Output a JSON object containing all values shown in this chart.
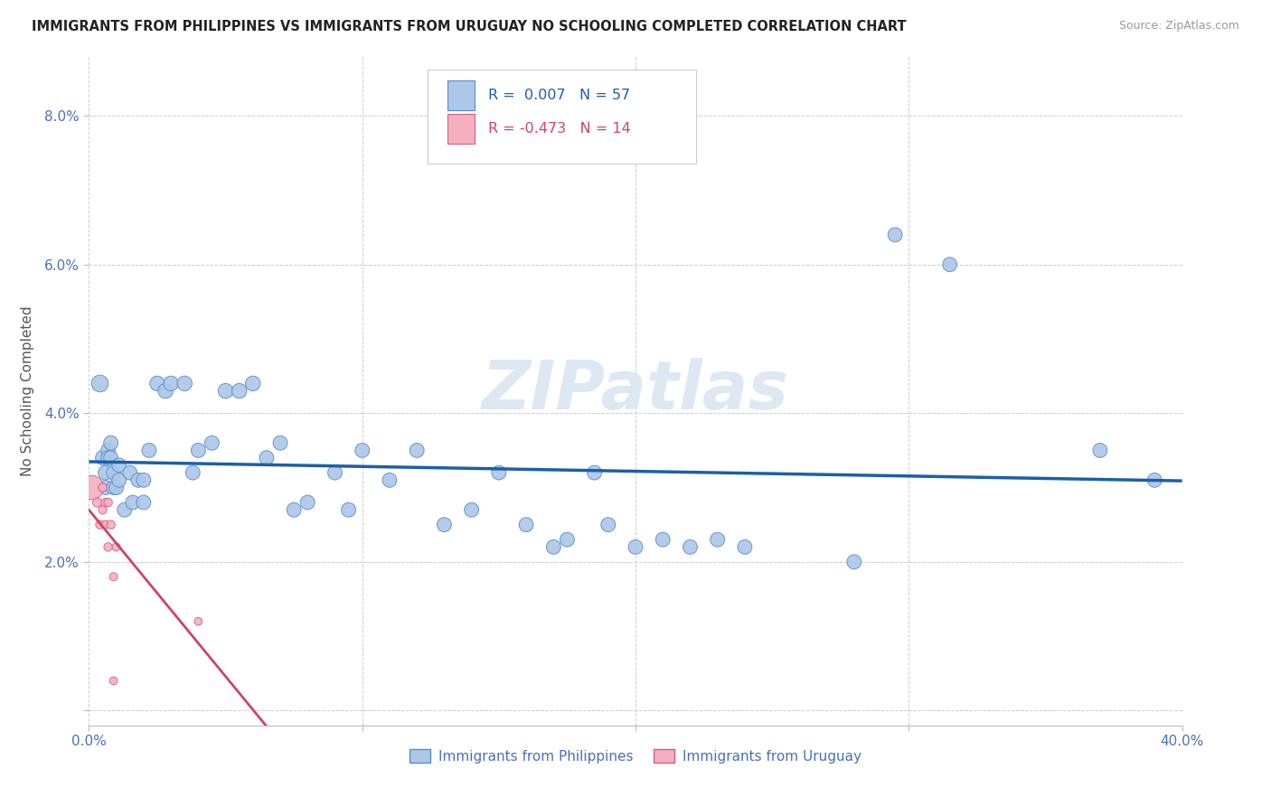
{
  "title": "IMMIGRANTS FROM PHILIPPINES VS IMMIGRANTS FROM URUGUAY NO SCHOOLING COMPLETED CORRELATION CHART",
  "source": "Source: ZipAtlas.com",
  "ylabel": "No Schooling Completed",
  "xlim": [
    0.0,
    0.4
  ],
  "ylim": [
    -0.002,
    0.088
  ],
  "yticks": [
    0.0,
    0.02,
    0.04,
    0.06,
    0.08
  ],
  "ytick_labels": [
    "",
    "2.0%",
    "4.0%",
    "6.0%",
    "8.0%"
  ],
  "xticks": [
    0.0,
    0.1,
    0.2,
    0.3,
    0.4
  ],
  "xtick_labels": [
    "0.0%",
    "",
    "",
    "",
    "40.0%"
  ],
  "philippines_R": 0.007,
  "philippines_N": 57,
  "uruguay_R": -0.473,
  "uruguay_N": 14,
  "philippines_color": "#aec6e8",
  "philippines_edge_color": "#5090cc",
  "philippines_line_color": "#1a5faa",
  "uruguay_color": "#f5afc0",
  "uruguay_edge_color": "#d06080",
  "uruguay_line_color": "#cc4466",
  "philippines_data": [
    [
      0.004,
      0.044,
      180
    ],
    [
      0.005,
      0.034,
      130
    ],
    [
      0.006,
      0.03,
      130
    ],
    [
      0.006,
      0.032,
      130
    ],
    [
      0.007,
      0.035,
      130
    ],
    [
      0.007,
      0.034,
      130
    ],
    [
      0.008,
      0.034,
      130
    ],
    [
      0.008,
      0.036,
      130
    ],
    [
      0.009,
      0.03,
      130
    ],
    [
      0.009,
      0.032,
      130
    ],
    [
      0.01,
      0.03,
      130
    ],
    [
      0.011,
      0.033,
      130
    ],
    [
      0.011,
      0.031,
      130
    ],
    [
      0.013,
      0.027,
      130
    ],
    [
      0.015,
      0.032,
      130
    ],
    [
      0.016,
      0.028,
      130
    ],
    [
      0.018,
      0.031,
      130
    ],
    [
      0.02,
      0.031,
      130
    ],
    [
      0.02,
      0.028,
      130
    ],
    [
      0.022,
      0.035,
      130
    ],
    [
      0.025,
      0.044,
      140
    ],
    [
      0.028,
      0.043,
      140
    ],
    [
      0.03,
      0.044,
      140
    ],
    [
      0.035,
      0.044,
      140
    ],
    [
      0.038,
      0.032,
      130
    ],
    [
      0.04,
      0.035,
      130
    ],
    [
      0.045,
      0.036,
      130
    ],
    [
      0.05,
      0.043,
      140
    ],
    [
      0.055,
      0.043,
      140
    ],
    [
      0.06,
      0.044,
      140
    ],
    [
      0.065,
      0.034,
      130
    ],
    [
      0.07,
      0.036,
      130
    ],
    [
      0.075,
      0.027,
      130
    ],
    [
      0.08,
      0.028,
      130
    ],
    [
      0.09,
      0.032,
      130
    ],
    [
      0.095,
      0.027,
      130
    ],
    [
      0.1,
      0.035,
      130
    ],
    [
      0.11,
      0.031,
      130
    ],
    [
      0.12,
      0.035,
      130
    ],
    [
      0.13,
      0.025,
      130
    ],
    [
      0.14,
      0.027,
      130
    ],
    [
      0.15,
      0.032,
      130
    ],
    [
      0.16,
      0.025,
      130
    ],
    [
      0.17,
      0.022,
      130
    ],
    [
      0.175,
      0.023,
      130
    ],
    [
      0.185,
      0.032,
      130
    ],
    [
      0.19,
      0.025,
      130
    ],
    [
      0.2,
      0.022,
      130
    ],
    [
      0.21,
      0.023,
      130
    ],
    [
      0.22,
      0.022,
      130
    ],
    [
      0.23,
      0.023,
      130
    ],
    [
      0.24,
      0.022,
      130
    ],
    [
      0.28,
      0.02,
      130
    ],
    [
      0.295,
      0.064,
      130
    ],
    [
      0.315,
      0.06,
      130
    ],
    [
      0.37,
      0.035,
      130
    ],
    [
      0.39,
      0.031,
      130
    ]
  ],
  "uruguay_data": [
    [
      0.001,
      0.03,
      2800
    ],
    [
      0.003,
      0.028,
      400
    ],
    [
      0.004,
      0.025,
      350
    ],
    [
      0.005,
      0.03,
      350
    ],
    [
      0.005,
      0.027,
      350
    ],
    [
      0.006,
      0.025,
      350
    ],
    [
      0.006,
      0.028,
      350
    ],
    [
      0.007,
      0.028,
      350
    ],
    [
      0.007,
      0.022,
      350
    ],
    [
      0.008,
      0.025,
      350
    ],
    [
      0.009,
      0.018,
      320
    ],
    [
      0.01,
      0.022,
      320
    ],
    [
      0.04,
      0.012,
      300
    ],
    [
      0.009,
      0.004,
      300
    ]
  ],
  "background_color": "#ffffff",
  "grid_color": "#cccccc"
}
